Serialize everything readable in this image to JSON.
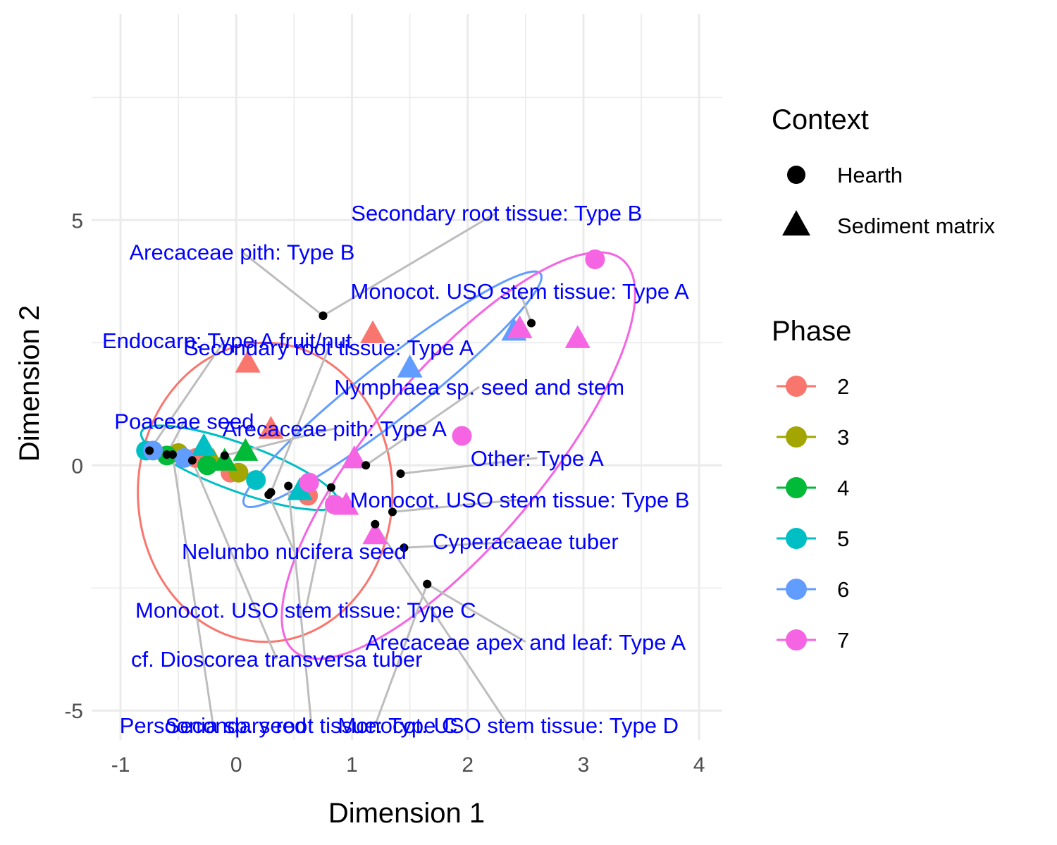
{
  "chart_data": {
    "type": "scatter",
    "title": "",
    "xlabel": "Dimension 1",
    "ylabel": "Dimension 2",
    "xlim": [
      -1.25,
      4.2
    ],
    "ylim": [
      -5.6,
      9.2
    ],
    "x_ticks": [
      {
        "value": -1,
        "label": "-1"
      },
      {
        "value": 0,
        "label": "0"
      },
      {
        "value": 1,
        "label": "1"
      },
      {
        "value": 2,
        "label": "2"
      },
      {
        "value": 3,
        "label": "3"
      },
      {
        "value": 4,
        "label": "4"
      }
    ],
    "y_ticks": [
      {
        "value": -5,
        "label": "-5"
      },
      {
        "value": 0,
        "label": "0"
      },
      {
        "value": 5,
        "label": "5"
      }
    ],
    "grid": true,
    "legend_placement": "right",
    "legends": {
      "context": {
        "title": "Context",
        "items": [
          {
            "label": "Hearth",
            "shape": "circle"
          },
          {
            "label": "Sediment matrix",
            "shape": "triangle"
          }
        ]
      },
      "phase": {
        "title": "Phase",
        "items": [
          {
            "label": "2",
            "color": "#F8766D"
          },
          {
            "label": "3",
            "color": "#A3A500"
          },
          {
            "label": "4",
            "color": "#00BA38"
          },
          {
            "label": "5",
            "color": "#00BFC4"
          },
          {
            "label": "6",
            "color": "#619CFF"
          },
          {
            "label": "7",
            "color": "#F564E3"
          }
        ]
      }
    },
    "ellipses": [
      {
        "phase": "2",
        "color": "#F8766D",
        "cx": 0.25,
        "cy": -0.55,
        "rx": 1.1,
        "ry": 3.05,
        "angle_deg": 0
      },
      {
        "phase": "5",
        "color": "#00BFC4",
        "cx": 0.03,
        "cy": -0.05,
        "rx": 1.27,
        "ry": 0.32,
        "angle_deg": -20
      },
      {
        "phase": "6",
        "color": "#619CFF",
        "cx": 1.35,
        "cy": 1.55,
        "rx": 2.28,
        "ry": 0.38,
        "angle_deg": 38
      },
      {
        "phase": "7",
        "color": "#F564E3",
        "cx": 1.92,
        "cy": 0.2,
        "rx": 3.1,
        "ry": 1.15,
        "angle_deg": 50
      }
    ],
    "series": [
      {
        "name": "2",
        "color": "#F8766D",
        "points": [
          {
            "x": 0.1,
            "y": 2.05,
            "shape": "triangle"
          },
          {
            "x": 1.18,
            "y": 2.65,
            "shape": "triangle"
          },
          {
            "x": 0.3,
            "y": 0.7,
            "shape": "triangle"
          },
          {
            "x": -0.05,
            "y": -0.15,
            "shape": "circle"
          },
          {
            "x": 0.62,
            "y": -0.62,
            "shape": "circle"
          },
          {
            "x": -0.35,
            "y": 0.15,
            "shape": "circle"
          }
        ]
      },
      {
        "name": "3",
        "color": "#A3A500",
        "points": [
          {
            "x": -0.5,
            "y": 0.25,
            "shape": "circle"
          },
          {
            "x": 0.02,
            "y": -0.15,
            "shape": "circle"
          },
          {
            "x": -0.2,
            "y": 0.05,
            "shape": "triangle"
          }
        ]
      },
      {
        "name": "4",
        "color": "#00BA38",
        "points": [
          {
            "x": 0.08,
            "y": 0.25,
            "shape": "triangle"
          },
          {
            "x": -0.25,
            "y": 0.0,
            "shape": "circle"
          },
          {
            "x": -0.6,
            "y": 0.2,
            "shape": "circle"
          },
          {
            "x": -0.1,
            "y": 0.05,
            "shape": "triangle"
          }
        ]
      },
      {
        "name": "5",
        "color": "#00BFC4",
        "points": [
          {
            "x": 0.17,
            "y": -0.3,
            "shape": "circle"
          },
          {
            "x": -0.28,
            "y": 0.35,
            "shape": "triangle"
          },
          {
            "x": 0.55,
            "y": -0.55,
            "shape": "triangle"
          },
          {
            "x": -0.78,
            "y": 0.3,
            "shape": "circle"
          }
        ]
      },
      {
        "name": "6",
        "color": "#619CFF",
        "points": [
          {
            "x": 1.5,
            "y": 1.95,
            "shape": "triangle"
          },
          {
            "x": 2.4,
            "y": 2.7,
            "shape": "triangle"
          },
          {
            "x": -0.72,
            "y": 0.3,
            "shape": "circle"
          },
          {
            "x": -0.45,
            "y": 0.15,
            "shape": "circle"
          }
        ]
      },
      {
        "name": "7",
        "color": "#F564E3",
        "points": [
          {
            "x": 3.1,
            "y": 4.2,
            "shape": "circle"
          },
          {
            "x": 2.45,
            "y": 2.75,
            "shape": "triangle"
          },
          {
            "x": 2.95,
            "y": 2.55,
            "shape": "triangle"
          },
          {
            "x": 1.95,
            "y": 0.6,
            "shape": "circle"
          },
          {
            "x": 1.02,
            "y": 0.1,
            "shape": "triangle"
          },
          {
            "x": 0.63,
            "y": -0.35,
            "shape": "circle"
          },
          {
            "x": 0.85,
            "y": -0.8,
            "shape": "circle"
          },
          {
            "x": 0.95,
            "y": -0.85,
            "shape": "triangle"
          },
          {
            "x": 1.2,
            "y": -1.45,
            "shape": "triangle"
          }
        ]
      }
    ],
    "labeled_points": [
      {
        "text": "Secondary root tissue: Type B",
        "x": 0.75,
        "y": 3.05,
        "lx": 2.25,
        "ly": 5.15
      },
      {
        "text": "Arecaceae pith: Type B",
        "x": 0.75,
        "y": 3.05,
        "lx": 0.05,
        "ly": 4.35
      },
      {
        "text": "Monocot. USO stem tissue: Type A",
        "x": 2.55,
        "y": 2.9,
        "lx": 2.45,
        "ly": 3.55
      },
      {
        "text": "Endocarp: Type A fruit/nut",
        "x": -0.75,
        "y": 0.3,
        "lx": -0.1,
        "ly": 2.55
      },
      {
        "text": "Secondary root tissue: Type A",
        "x": 0.3,
        "y": -0.55,
        "lx": 0.8,
        "ly": 2.4
      },
      {
        "text": "Nymphaea sp. seed and stem",
        "x": 1.12,
        "y": 0.0,
        "lx": 2.1,
        "ly": 1.6
      },
      {
        "text": "Poaceae seed",
        "x": -0.6,
        "y": 0.22,
        "lx": -0.45,
        "ly": 0.9
      },
      {
        "text": "Arecaceae pith: Type A",
        "x": -0.1,
        "y": 0.2,
        "lx": 0.85,
        "ly": 0.75
      },
      {
        "text": "Other: Type A",
        "x": 1.42,
        "y": -0.17,
        "lx": 2.6,
        "ly": 0.15
      },
      {
        "text": "Monocot. USO stem tissue: Type B",
        "x": 1.35,
        "y": -0.95,
        "lx": 2.45,
        "ly": -0.7
      },
      {
        "text": "Cyperacaeae tuber",
        "x": 1.45,
        "y": -1.68,
        "lx": 2.5,
        "ly": -1.55
      },
      {
        "text": "Nelumbo nucifera seed",
        "x": 0.28,
        "y": -0.6,
        "lx": 0.5,
        "ly": -1.75
      },
      {
        "text": "Monocot. USO stem tissue: Type C",
        "x": 0.82,
        "y": -0.45,
        "lx": 0.6,
        "ly": -2.95
      },
      {
        "text": "Arecaceae apex and leaf: Type A",
        "x": 1.65,
        "y": -2.42,
        "lx": 2.5,
        "ly": -3.6
      },
      {
        "text": "cf. Dioscorea transversa tuber",
        "x": -0.38,
        "y": 0.1,
        "lx": 0.35,
        "ly": -3.95
      },
      {
        "text": "Persoonia sp. seed",
        "x": -0.55,
        "y": 0.22,
        "lx": -0.2,
        "ly": -5.3
      },
      {
        "text": "Secondary root tissue: Type C",
        "x": 0.45,
        "y": -0.42,
        "lx": 0.65,
        "ly": -5.3
      },
      {
        "text": "Monocot. USO stem tissue: Type D",
        "x": 1.2,
        "y": -1.2,
        "lx": 2.35,
        "ly": -5.3
      },
      {
        "text": "",
        "x": 1.65,
        "y": -2.42,
        "lx": 1.2,
        "ly": -5.3
      }
    ]
  }
}
